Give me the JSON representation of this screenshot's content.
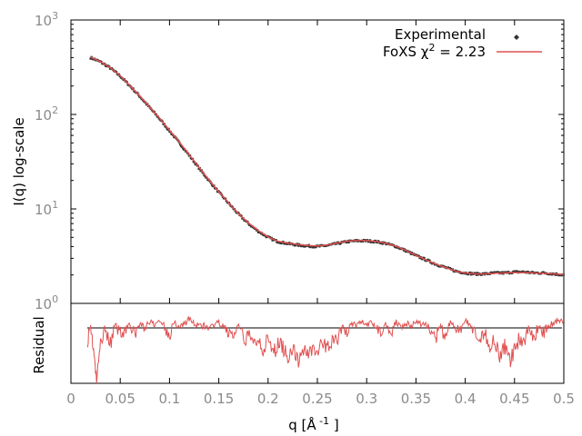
{
  "chart_data": [
    {
      "type": "scatter",
      "title": "",
      "xlabel": "",
      "ylabel": "I(q) log-scale",
      "yscale": "log",
      "xlim": [
        0,
        0.5
      ],
      "ylim": [
        1,
        1000
      ],
      "y_ticks": [
        {
          "value": 1,
          "base": "10",
          "exp": "0"
        },
        {
          "value": 10,
          "base": "10",
          "exp": "1"
        },
        {
          "value": 100,
          "base": "10",
          "exp": "2"
        },
        {
          "value": 1000,
          "base": "10",
          "exp": "3"
        }
      ],
      "legend": {
        "placement": "top-right",
        "experimental_label": "Experimental",
        "fit_label_prefix": "FoXS χ",
        "fit_label_sup": "2",
        "fit_label_suffix": " = 2.23"
      },
      "series": [
        {
          "name": "Experimental",
          "color": "#333333",
          "marker": "point",
          "x": [
            0.02,
            0.03,
            0.04,
            0.05,
            0.06,
            0.07,
            0.08,
            0.09,
            0.1,
            0.11,
            0.12,
            0.13,
            0.14,
            0.15,
            0.16,
            0.17,
            0.18,
            0.19,
            0.2,
            0.21,
            0.22,
            0.23,
            0.24,
            0.25,
            0.26,
            0.27,
            0.28,
            0.29,
            0.3,
            0.31,
            0.32,
            0.33,
            0.34,
            0.35,
            0.36,
            0.37,
            0.38,
            0.39,
            0.4,
            0.41,
            0.42,
            0.43,
            0.44,
            0.45,
            0.46,
            0.47,
            0.48,
            0.49,
            0.5
          ],
          "y": [
            400,
            360,
            310,
            255,
            200,
            155,
            118,
            90,
            67,
            50,
            37,
            27,
            20,
            15,
            11.5,
            8.8,
            7.0,
            5.8,
            5.0,
            4.5,
            4.3,
            4.15,
            4.05,
            4.0,
            4.1,
            4.3,
            4.5,
            4.6,
            4.6,
            4.5,
            4.3,
            4.0,
            3.6,
            3.2,
            2.9,
            2.6,
            2.4,
            2.2,
            2.1,
            2.05,
            2.05,
            2.1,
            2.1,
            2.15,
            2.15,
            2.1,
            2.1,
            2.05,
            2.0
          ]
        },
        {
          "name": "FoXS χ² = 2.23",
          "color": "#e05050",
          "marker": "line",
          "x": [
            0.02,
            0.03,
            0.04,
            0.05,
            0.06,
            0.07,
            0.08,
            0.09,
            0.1,
            0.11,
            0.12,
            0.13,
            0.14,
            0.15,
            0.16,
            0.17,
            0.18,
            0.19,
            0.2,
            0.21,
            0.22,
            0.23,
            0.24,
            0.25,
            0.26,
            0.27,
            0.28,
            0.29,
            0.3,
            0.31,
            0.32,
            0.33,
            0.34,
            0.35,
            0.36,
            0.37,
            0.38,
            0.39,
            0.4,
            0.41,
            0.42,
            0.43,
            0.44,
            0.45,
            0.46,
            0.47,
            0.48,
            0.49,
            0.5
          ],
          "y": [
            405,
            362,
            312,
            257,
            201,
            156,
            119,
            91,
            68,
            51,
            37.5,
            27.5,
            20.3,
            15.2,
            11.6,
            8.9,
            7.1,
            5.9,
            5.05,
            4.55,
            4.35,
            4.2,
            4.1,
            4.05,
            4.15,
            4.35,
            4.55,
            4.65,
            4.62,
            4.52,
            4.32,
            4.02,
            3.62,
            3.22,
            2.9,
            2.6,
            2.4,
            2.2,
            2.1,
            2.05,
            2.05,
            2.08,
            2.1,
            2.12,
            2.12,
            2.1,
            2.08,
            2.05,
            2.02
          ]
        }
      ]
    },
    {
      "type": "line",
      "title": "",
      "xlabel": "q [Å -1 ]",
      "xlabel_main": "q [Å",
      "xlabel_sup": " -1",
      "xlabel_close": " ]",
      "ylabel": "Residual",
      "xlim": [
        0,
        0.5
      ],
      "ylim": [
        -3,
        3
      ],
      "x_ticks": [
        "0",
        "0.05",
        "0.1",
        "0.15",
        "0.2",
        "0.25",
        "0.3",
        "0.35",
        "0.4",
        "0.45",
        "0.5"
      ],
      "reference_line": 0,
      "series": [
        {
          "color": "#e05050",
          "x": [
            0.017,
            0.02,
            0.023,
            0.026,
            0.03,
            0.035,
            0.04,
            0.045,
            0.05,
            0.055,
            0.06,
            0.065,
            0.07,
            0.075,
            0.08,
            0.085,
            0.09,
            0.095,
            0.1,
            0.105,
            0.11,
            0.115,
            0.12,
            0.125,
            0.13,
            0.135,
            0.14,
            0.145,
            0.15,
            0.155,
            0.16,
            0.165,
            0.17,
            0.175,
            0.18,
            0.185,
            0.19,
            0.195,
            0.2,
            0.205,
            0.21,
            0.215,
            0.22,
            0.225,
            0.23,
            0.235,
            0.24,
            0.245,
            0.25,
            0.255,
            0.26,
            0.265,
            0.27,
            0.275,
            0.28,
            0.285,
            0.29,
            0.295,
            0.3,
            0.305,
            0.31,
            0.315,
            0.32,
            0.325,
            0.33,
            0.335,
            0.34,
            0.345,
            0.35,
            0.355,
            0.36,
            0.365,
            0.37,
            0.375,
            0.38,
            0.385,
            0.39,
            0.395,
            0.4,
            0.405,
            0.41,
            0.415,
            0.42,
            0.425,
            0.43,
            0.435,
            0.44,
            0.445,
            0.45,
            0.455,
            0.46,
            0.465,
            0.47,
            0.475,
            0.48,
            0.485,
            0.49,
            0.495,
            0.5
          ],
          "y": [
            -0.6,
            0.2,
            -1.2,
            -3.0,
            -0.8,
            0.1,
            -0.9,
            0.3,
            -0.2,
            0.0,
            0.4,
            -0.5,
            0.6,
            0.1,
            0.9,
            0.3,
            1.2,
            0.2,
            -0.4,
            0.8,
            0.1,
            0.7,
            1.3,
            0.6,
            0.2,
            0.5,
            -0.3,
            0.4,
            0.7,
            0.1,
            -0.2,
            -0.5,
            0.2,
            -0.7,
            -0.4,
            -0.9,
            -0.5,
            -1.1,
            -0.7,
            -1.4,
            -0.9,
            -1.0,
            -1.6,
            -1.0,
            -1.9,
            -1.1,
            -1.4,
            -1.0,
            -1.3,
            -0.9,
            -1.1,
            -0.6,
            -0.8,
            0.1,
            -0.2,
            0.6,
            0.4,
            1.0,
            0.3,
            0.7,
            0.2,
            -0.3,
            0.6,
            -0.4,
            0.9,
            0.3,
            0.8,
            0.1,
            1.0,
            0.5,
            0.6,
            -0.2,
            -0.6,
            0.1,
            -0.5,
            0.7,
            0.2,
            -0.1,
            1.0,
            0.4,
            -0.4,
            -0.9,
            -0.2,
            -1.0,
            -0.6,
            -1.5,
            -1.0,
            -1.8,
            -1.2,
            -0.5,
            -0.8,
            0.2,
            -0.6,
            0.5,
            -0.3,
            0.4,
            0.6,
            1.2,
            0.5
          ]
        }
      ]
    }
  ]
}
